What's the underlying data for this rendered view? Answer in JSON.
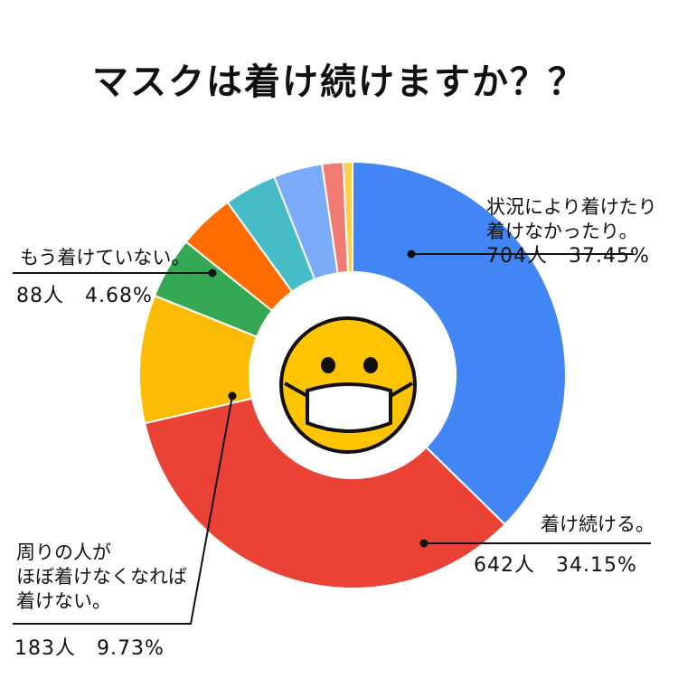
{
  "title": "マスクは着け続けますか？？",
  "chart_data": {
    "type": "pie",
    "title": "マスクは着け続けますか？？",
    "slices": [
      {
        "label": "状況により着けたり着けなかったり。",
        "count": "704人",
        "percent_label": "37.45%",
        "value": 37.45,
        "color": "#4285F4"
      },
      {
        "label": "着け続ける。",
        "count": "642人",
        "percent_label": "34.15%",
        "value": 34.15,
        "color": "#EA4335"
      },
      {
        "label": "周りの人がほぼ着けなくなれば着けない。",
        "count": "183人",
        "percent_label": "9.73%",
        "value": 9.73,
        "color": "#FBBC04"
      },
      {
        "label": "もう着けていない。",
        "count": "88人",
        "percent_label": "4.68%",
        "value": 4.68,
        "color": "#34A853"
      },
      {
        "label": "",
        "value": 4.3,
        "color": "#FF6D01"
      },
      {
        "label": "",
        "value": 4.0,
        "color": "#46BDC6"
      },
      {
        "label": "",
        "value": 3.7,
        "color": "#7BAAF7"
      },
      {
        "label": "",
        "value": 1.6,
        "color": "#F07B72"
      },
      {
        "label": "",
        "value": 0.7,
        "color": "#FCD04F"
      }
    ]
  },
  "labels": {
    "a_line1": "状況により着けたり",
    "a_line2": "着けなかったり。",
    "a_stat": "704人　37.45%",
    "b_line1": "着け続ける。",
    "b_stat": "642人　34.15%",
    "c_line1": "周りの人が",
    "c_line2": "ほぼ着けなくなれば",
    "c_line3": "着けない。",
    "c_stat": "183人　9.73%",
    "d_line1": "もう着けていない。",
    "d_stat": "88人　4.68%"
  },
  "center_icon": "masked-face-emoji-icon"
}
